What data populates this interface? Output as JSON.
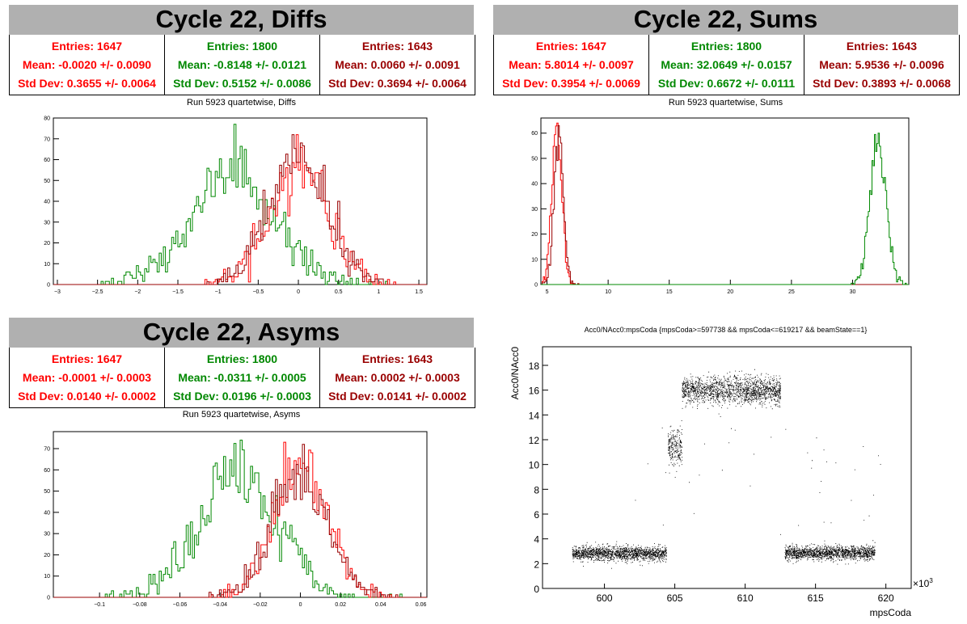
{
  "colors": {
    "red": "#ff0000",
    "green": "#008800",
    "darkred": "#990000",
    "black": "#000000",
    "title_bg": "#b0b0b0"
  },
  "panels": {
    "diffs": {
      "title": "Cycle 22, Diffs",
      "subtitle": "Run 5923 quartetwise, Diffs",
      "stats": [
        {
          "entries": "Entries: 1647",
          "mean": "Mean: -0.0020 +/- 0.0090",
          "std": "Std Dev: 0.3655 +/- 0.0064"
        },
        {
          "entries": "Entries: 1800",
          "mean": "Mean: -0.8148 +/- 0.0121",
          "std": "Std Dev: 0.5152 +/- 0.0086"
        },
        {
          "entries": "Entries: 1643",
          "mean": "Mean: 0.0060 +/- 0.0091",
          "std": "Std Dev: 0.3694 +/- 0.0064"
        }
      ]
    },
    "sums": {
      "title": "Cycle 22, Sums",
      "subtitle": "Run 5923 quartetwise, Sums",
      "stats": [
        {
          "entries": "Entries: 1647",
          "mean": "Mean: 5.8014 +/- 0.0097",
          "std": "Std Dev: 0.3954 +/- 0.0069"
        },
        {
          "entries": "Entries: 1800",
          "mean": "Mean: 32.0649 +/- 0.0157",
          "std": "Std Dev: 0.6672 +/- 0.0111"
        },
        {
          "entries": "Entries: 1643",
          "mean": "Mean: 5.9536 +/- 0.0096",
          "std": "Std Dev: 0.3893 +/- 0.0068"
        }
      ]
    },
    "asyms": {
      "title": "Cycle 22, Asyms",
      "subtitle": "Run 5923 quartetwise, Asyms",
      "stats": [
        {
          "entries": "Entries: 1647",
          "mean": "Mean: -0.0001 +/- 0.0003",
          "std": "Std Dev: 0.0140 +/- 0.0002"
        },
        {
          "entries": "Entries: 1800",
          "mean": "Mean: -0.0311 +/- 0.0005",
          "std": "Std Dev: 0.0196 +/- 0.0003"
        },
        {
          "entries": "Entries: 1643",
          "mean": "Mean: 0.0002 +/- 0.0003",
          "std": "Std Dev: 0.0141 +/- 0.0002"
        }
      ]
    },
    "scatter": {
      "title": "Acc0/NAcc0:mpsCoda {mpsCoda>=597738 && mpsCoda<=619217 && beamState==1}",
      "xlabel": "mpsCoda",
      "ylabel": "Acc0/NAcc0",
      "exponent_label": "×10",
      "exponent": "3"
    }
  },
  "chart_data": [
    {
      "type": "histogram",
      "name": "diffs",
      "title": "Run 5923 quartetwise, Diffs",
      "xlim": [
        -3.05,
        1.6
      ],
      "ylim": [
        0,
        80
      ],
      "xticks": [
        -3,
        -2.5,
        -2,
        -1.5,
        -1,
        -0.5,
        0,
        0.5,
        1,
        1.5
      ],
      "yticks": [
        0,
        10,
        20,
        30,
        40,
        50,
        60,
        70,
        80
      ],
      "series": [
        {
          "color": "green",
          "entries": 1800,
          "mean": -0.8148,
          "std": 0.5152,
          "peak": 77
        },
        {
          "color": "red",
          "entries": 1647,
          "mean": -0.002,
          "std": 0.3655,
          "peak": 72
        },
        {
          "color": "darkred",
          "entries": 1643,
          "mean": 0.006,
          "std": 0.3694,
          "peak": 72
        }
      ]
    },
    {
      "type": "histogram",
      "name": "sums",
      "title": "Run 5923 quartetwise, Sums",
      "xlim": [
        4.5,
        34.6
      ],
      "ylim": [
        0,
        66
      ],
      "xticks": [
        5,
        10,
        15,
        20,
        25,
        30
      ],
      "yticks": [
        0,
        10,
        20,
        30,
        40,
        50,
        60
      ],
      "series": [
        {
          "color": "red",
          "entries": 1647,
          "mean": 5.8014,
          "std": 0.3954,
          "peak": 64
        },
        {
          "color": "darkred",
          "entries": 1643,
          "mean": 5.9536,
          "std": 0.3893,
          "peak": 63
        },
        {
          "color": "green",
          "entries": 1800,
          "mean": 32.0649,
          "std": 0.6672,
          "peak": 60
        }
      ]
    },
    {
      "type": "histogram",
      "name": "asyms",
      "title": "Run 5923 quartetwise, Asyms",
      "xlim": [
        -0.123,
        0.063
      ],
      "ylim": [
        0,
        78
      ],
      "xticks": [
        -0.1,
        -0.08,
        -0.06,
        -0.04,
        -0.02,
        0,
        0.02,
        0.04,
        0.06
      ],
      "yticks": [
        0,
        10,
        20,
        30,
        40,
        50,
        60,
        70
      ],
      "series": [
        {
          "color": "green",
          "entries": 1800,
          "mean": -0.0311,
          "std": 0.0196,
          "peak": 74
        },
        {
          "color": "red",
          "entries": 1647,
          "mean": -0.0001,
          "std": 0.014,
          "peak": 73
        },
        {
          "color": "darkred",
          "entries": 1643,
          "mean": 0.0002,
          "std": 0.0141,
          "peak": 72
        }
      ]
    },
    {
      "type": "scatter",
      "name": "acc0-vs-mpscoda",
      "title": "Acc0/NAcc0:mpsCoda {mpsCoda>=597738 && mpsCoda<=619217 && beamState==1}",
      "xlabel": "mpsCoda",
      "ylabel": "Acc0/NAcc0",
      "xlim": [
        595.6,
        621.8
      ],
      "ylim": [
        0,
        19.5
      ],
      "xticks": [
        600,
        605,
        610,
        615,
        620
      ],
      "yticks": [
        0,
        2,
        4,
        6,
        8,
        10,
        12,
        14,
        16,
        18
      ],
      "clusters": [
        {
          "x": [
            597.7,
            604.4
          ],
          "y_center": 2.85,
          "y_spread": 0.28
        },
        {
          "x": [
            604.5,
            605.5
          ],
          "y_center": 11.5,
          "y_spread": 0.7
        },
        {
          "x": [
            605.5,
            612.5
          ],
          "y_center": 16.0,
          "y_spread": 0.55
        },
        {
          "x": [
            612.8,
            619.2
          ],
          "y_center": 2.9,
          "y_spread": 0.28
        }
      ]
    }
  ]
}
